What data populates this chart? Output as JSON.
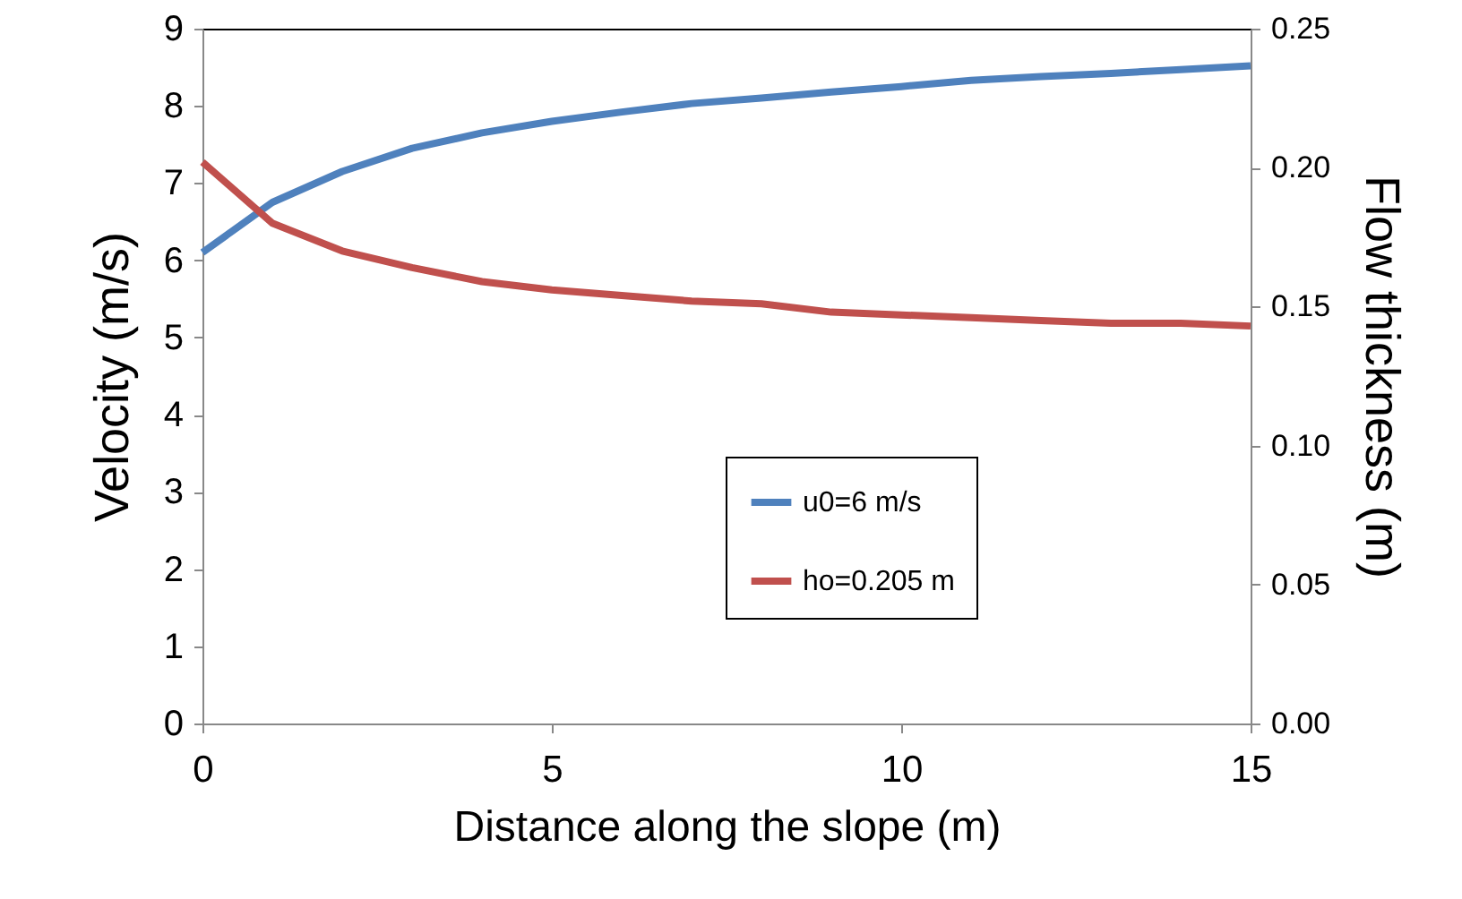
{
  "chart_data": {
    "type": "line",
    "xlabel": "Distance along the slope (m)",
    "ylabel": "Velocity (m/s)",
    "y2label": "Flow thickness (m)",
    "x": [
      0,
      1,
      2,
      3,
      4,
      5,
      6,
      7,
      8,
      9,
      10,
      11,
      12,
      13,
      14,
      15
    ],
    "series": [
      {
        "name": "u0=6 m/s",
        "color": "#4f81bd",
        "values": [
          6.1,
          6.75,
          7.15,
          7.45,
          7.65,
          7.8,
          7.92,
          8.03,
          8.1,
          8.18,
          8.25,
          8.33,
          8.38,
          8.42,
          8.47,
          8.52
        ]
      },
      {
        "name": "ho=0.205 m",
        "color": "#c0504d",
        "axis": "y2",
        "values": [
          0.202,
          0.18,
          0.17,
          0.164,
          0.159,
          0.156,
          0.154,
          0.152,
          0.151,
          0.148,
          0.147,
          0.146,
          0.145,
          0.144,
          0.144,
          0.143
        ]
      }
    ],
    "xlim": [
      0,
      15
    ],
    "xticks": [
      0,
      5,
      10,
      15
    ],
    "ylim": [
      0,
      9
    ],
    "yticks": [
      0,
      1,
      2,
      3,
      4,
      5,
      6,
      7,
      8,
      9
    ],
    "y2lim": [
      0,
      0.25
    ],
    "y2ticks": [
      {
        "value": 0,
        "label": "0.00"
      },
      {
        "value": 0.05,
        "label": "0.05"
      },
      {
        "value": 0.1,
        "label": "0.10"
      },
      {
        "value": 0.15,
        "label": "0.15"
      },
      {
        "value": 0.2,
        "label": "0.20"
      },
      {
        "value": 0.25,
        "label": "0.25"
      }
    ],
    "legend": "right",
    "grid": false,
    "marker": "none",
    "line_style": "solid"
  }
}
